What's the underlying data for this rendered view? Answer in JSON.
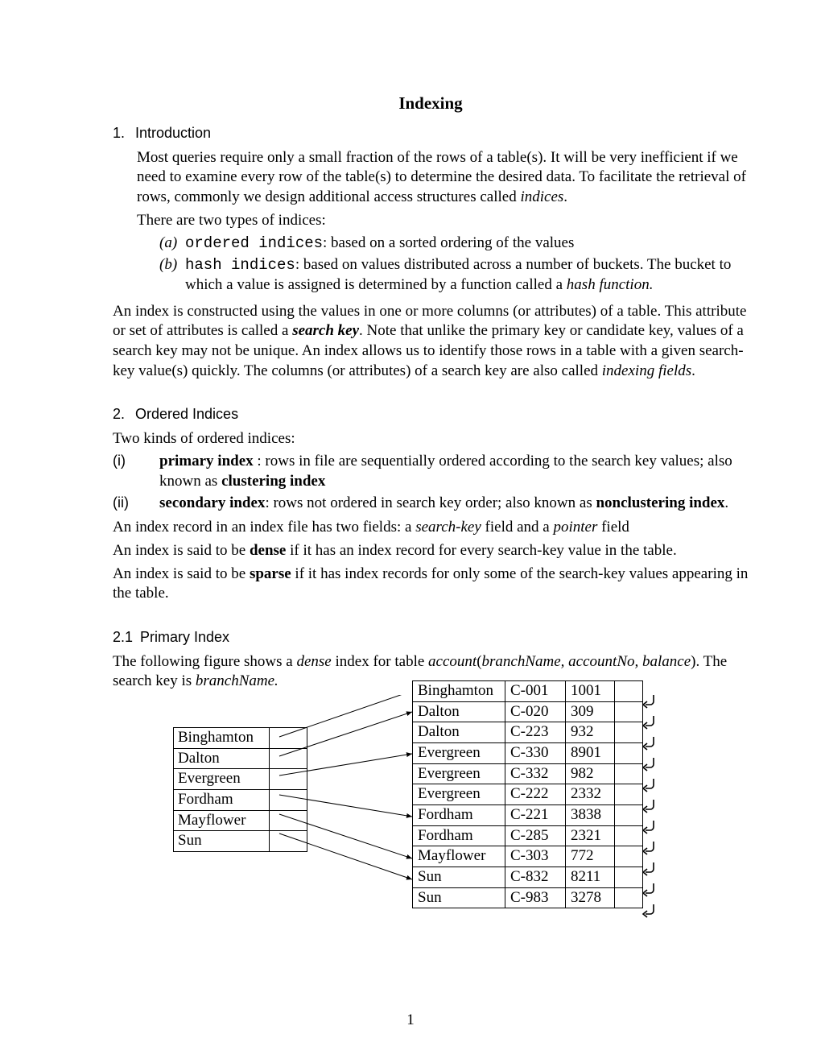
{
  "title": "Indexing",
  "section1": {
    "num": "1.",
    "heading": "Introduction",
    "para1_a": "Most queries require only a small fraction of the rows of a table(s).   It will be very inefficient if we need to examine every row of the table(s) to determine the desired data.   To facilitate the retrieval of rows, commonly we design additional access structures called ",
    "para1_b": "indices",
    "para1_c": ".",
    "para2": "There are two types of indices:",
    "item_a_marker": "(a)",
    "item_a_code": "ordered indices",
    "item_a_rest": ":  based on a sorted ordering of the values",
    "item_b_marker": "(b)",
    "item_b_code": "hash indices",
    "item_b_rest1": ":  based on values distributed across a number of buckets.  The bucket to which a value is assigned is determined by a function called a ",
    "item_b_rest2": "hash function.",
    "para3_a": "An index is constructed using the values in one or more columns (or attributes) of a table.   This attribute or set of attributes is called a ",
    "para3_b": "search key",
    "para3_c": ".   Note that unlike the primary key or candidate key, values of a search key may not be unique.  An index allows us to identify those rows in a table with a given search-key value(s) quickly.   The columns (or attributes) of a search key are also called ",
    "para3_d": "indexing fields",
    "para3_e": "."
  },
  "section2": {
    "num": "2.",
    "heading": "Ordered Indices",
    "para1": "Two kinds of ordered indices:",
    "item_i_marker": "(i)",
    "item_i_b1": "primary index",
    "item_i_rest1": " : rows in file are sequentially ordered according to the search key values; also known as ",
    "item_i_b2": "clustering index",
    "item_ii_marker": "(ii)",
    "item_ii_b1": "secondary index",
    "item_ii_rest1": ":  rows not ordered in search key order; also known as ",
    "item_ii_b2": "nonclustering index",
    "item_ii_rest2": ".",
    "para2_a": "An index record in an index file has two fields:  a ",
    "para2_b": "search-key",
    "para2_c": " field and a ",
    "para2_d": "pointer",
    "para2_e": " field",
    "para3_a": "An index is said to be ",
    "para3_b": "dense",
    "para3_c": " if it has an index record for every search-key value in the table.",
    "para4_a": "An index is said to be ",
    "para4_b": "sparse",
    "para4_c": " if it has index records for only some of the search-key values appearing in the table."
  },
  "section21": {
    "num": "2.1",
    "heading": "Primary Index",
    "para1_a": "The following figure shows a ",
    "para1_b": "dense",
    "para1_c": " index for table ",
    "para1_d": "account",
    "para1_e": "(",
    "para1_f": "branchName, accountNo, balance",
    "para1_g": ").  The search key is  ",
    "para1_h": "branchName."
  },
  "indexTable": [
    "Binghamton",
    "Dalton",
    "Evergreen",
    "Fordham",
    "Mayflower",
    "Sun"
  ],
  "dataTable": [
    [
      "Binghamton",
      "C-001",
      "1001"
    ],
    [
      "Dalton",
      "C-020",
      "309"
    ],
    [
      "Dalton",
      "C-223",
      "932"
    ],
    [
      "Evergreen",
      "C-330",
      "8901"
    ],
    [
      "Evergreen",
      "C-332",
      "982"
    ],
    [
      "Evergreen",
      "C-222",
      "2332"
    ],
    [
      "Fordham",
      "C-221",
      "3838"
    ],
    [
      "Fordham",
      "C-285",
      "2321"
    ],
    [
      "Mayflower",
      "C-303",
      "772"
    ],
    [
      "Sun",
      "C-832",
      "8211"
    ],
    [
      "Sun",
      "C-983",
      "3278"
    ]
  ],
  "arrowMap": [
    0,
    1,
    3,
    6,
    8,
    9
  ],
  "pageNumber": "1",
  "enterGlyph": "↵"
}
